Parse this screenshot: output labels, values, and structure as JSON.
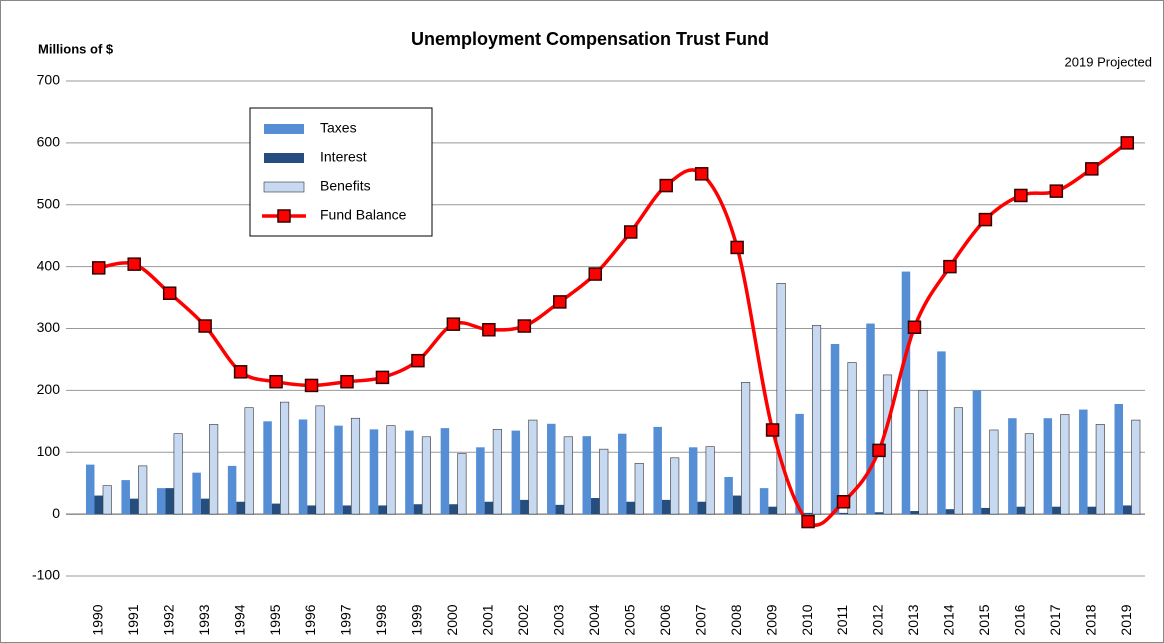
{
  "chart_data": {
    "type": "bar",
    "title": "Unemployment Compensation Trust Fund",
    "y_label": "Millions of $",
    "annotation": "2019 Projected",
    "categories": [
      "1990",
      "1991",
      "1992",
      "1993",
      "1994",
      "1995",
      "1996",
      "1997",
      "1998",
      "1999",
      "2000",
      "2001",
      "2002",
      "2003",
      "2004",
      "2005",
      "2006",
      "2007",
      "2008",
      "2009",
      "2010",
      "2011",
      "2012",
      "2013",
      "2014",
      "2015",
      "2016",
      "2017",
      "2018",
      "2019"
    ],
    "series": [
      {
        "name": "Taxes",
        "type": "bar",
        "color": "#558ed5",
        "values": [
          80,
          55,
          42,
          67,
          78,
          150,
          153,
          143,
          137,
          135,
          139,
          108,
          135,
          146,
          126,
          130,
          141,
          108,
          60,
          42,
          162,
          275,
          308,
          392,
          263,
          200,
          155,
          155,
          169,
          178
        ]
      },
      {
        "name": "Interest",
        "type": "bar",
        "color": "#254e7e",
        "values": [
          30,
          25,
          42,
          25,
          20,
          17,
          14,
          14,
          14,
          16,
          16,
          20,
          23,
          15,
          26,
          20,
          23,
          20,
          30,
          12,
          2,
          2,
          3,
          5,
          8,
          10,
          12,
          12,
          12,
          14
        ]
      },
      {
        "name": "Benefits",
        "type": "bar",
        "color": "#c6d9f1",
        "values": [
          46,
          78,
          130,
          145,
          172,
          181,
          175,
          155,
          143,
          125,
          98,
          137,
          152,
          125,
          105,
          82,
          91,
          109,
          213,
          373,
          305,
          245,
          225,
          200,
          172,
          136,
          130,
          161,
          145,
          152
        ]
      },
      {
        "name": "Fund Balance",
        "type": "line",
        "color": "#ff0000",
        "values": [
          398,
          404,
          357,
          304,
          230,
          214,
          208,
          214,
          221,
          248,
          307,
          298,
          304,
          343,
          388,
          456,
          531,
          550,
          431,
          136,
          -12,
          20,
          103,
          302,
          400,
          476,
          515,
          522,
          558,
          600
        ]
      }
    ],
    "ylim": [
      -100,
      700
    ],
    "yticks": [
      -100,
      0,
      100,
      200,
      300,
      400,
      500,
      600,
      700
    ],
    "grid": true
  }
}
